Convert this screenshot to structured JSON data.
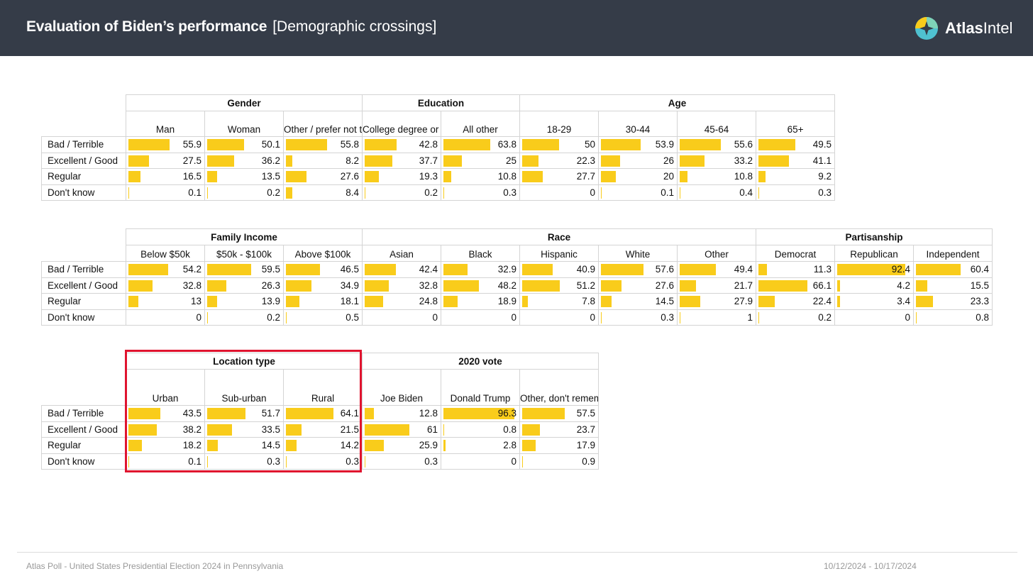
{
  "header": {
    "title": "Evaluation of Biden’s performance",
    "subtitle": "[Demographic crossings]",
    "logo_bold": "Atlas",
    "logo_light": "Intel",
    "bg_color": "#353c48"
  },
  "footer": {
    "source": "Atlas Poll - United States Presidential Election 2024 in Pennsylvania",
    "dates": "10/12/2024 - 10/17/2024"
  },
  "colors": {
    "bar": "#f9cc1b",
    "highlight": "#e0142f"
  },
  "chart_data": [
    {
      "type": "table",
      "rows": [
        "Bad / Terrible",
        "Excellent / Good",
        "Regular",
        "Don't know"
      ],
      "groups": [
        {
          "name": "Gender",
          "columns": [
            "Man",
            "Woman",
            "Other / prefer not to identify"
          ]
        },
        {
          "name": "Education",
          "columns": [
            "College degree or higher",
            "All other"
          ]
        },
        {
          "name": "Age",
          "columns": [
            "18-29",
            "30-44",
            "45-64",
            "65+"
          ]
        }
      ],
      "values": [
        [
          55.9,
          50.1,
          55.8,
          42.8,
          63.8,
          50,
          53.9,
          55.6,
          49.5
        ],
        [
          27.5,
          36.2,
          8.2,
          37.7,
          25,
          22.3,
          26,
          33.2,
          41.1
        ],
        [
          16.5,
          13.5,
          27.6,
          19.3,
          10.8,
          27.7,
          20,
          10.8,
          9.2
        ],
        [
          0.1,
          0.2,
          8.4,
          0.2,
          0.3,
          0,
          0.1,
          0.4,
          0.3
        ]
      ]
    },
    {
      "type": "table",
      "rows": [
        "Bad / Terrible",
        "Excellent / Good",
        "Regular",
        "Don't know"
      ],
      "groups": [
        {
          "name": "Family Income",
          "columns": [
            "Below $50k",
            "$50k - $100k",
            "Above $100k"
          ]
        },
        {
          "name": "Race",
          "columns": [
            "Asian",
            "Black",
            "Hispanic",
            "White",
            "Other"
          ]
        },
        {
          "name": "Partisanship",
          "columns": [
            "Democrat",
            "Republican",
            "Independent"
          ]
        }
      ],
      "values": [
        [
          54.2,
          59.5,
          46.5,
          42.4,
          32.9,
          40.9,
          57.6,
          49.4,
          11.3,
          92.4,
          60.4
        ],
        [
          32.8,
          26.3,
          34.9,
          32.8,
          48.2,
          51.2,
          27.6,
          21.7,
          66.1,
          4.2,
          15.5
        ],
        [
          13,
          13.9,
          18.1,
          24.8,
          18.9,
          7.8,
          14.5,
          27.9,
          22.4,
          3.4,
          23.3
        ],
        [
          0,
          0.2,
          0.5,
          0,
          0,
          0,
          0.3,
          1,
          0.2,
          0,
          0.8
        ]
      ]
    },
    {
      "type": "table",
      "rows": [
        "Bad / Terrible",
        "Excellent / Good",
        "Regular",
        "Don't know"
      ],
      "groups": [
        {
          "name": "Location type",
          "columns": [
            "Urban",
            "Sub-urban",
            "Rural"
          ]
        },
        {
          "name": "2020 vote",
          "columns": [
            "Joe Biden",
            "Donald Trump",
            "Other, don't remember, didn't vote"
          ]
        }
      ],
      "values": [
        [
          43.5,
          51.7,
          64.1,
          12.8,
          96.3,
          57.5
        ],
        [
          38.2,
          33.5,
          21.5,
          61,
          0.8,
          23.7
        ],
        [
          18.2,
          14.5,
          14.2,
          25.9,
          2.8,
          17.9
        ],
        [
          0.1,
          0.3,
          0.3,
          0.3,
          0,
          0.9
        ]
      ]
    }
  ]
}
